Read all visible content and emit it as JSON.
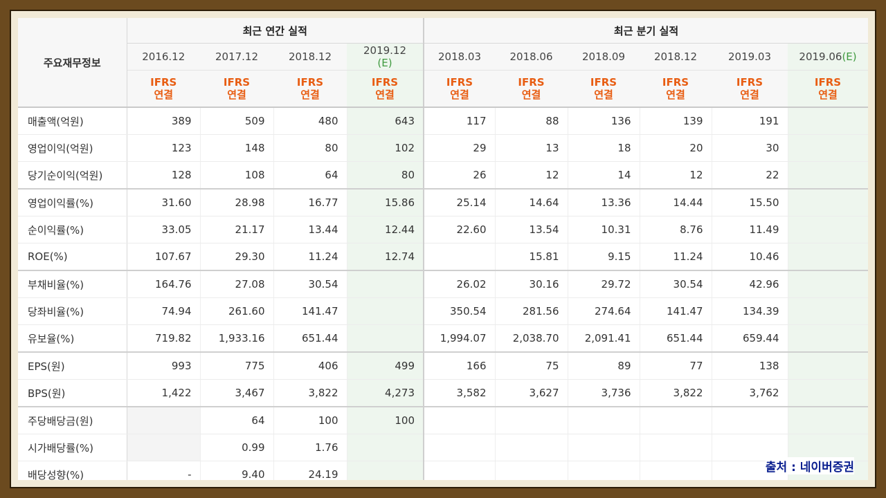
{
  "header": {
    "corner": "주요재무정보",
    "annual_group": "최근 연간 실적",
    "quarter_group": "최근 분기 실적",
    "periods": [
      "2016.12",
      "2017.12",
      "2018.12",
      "2019.12",
      "2018.03",
      "2018.06",
      "2018.09",
      "2018.12",
      "2019.03",
      "2019.06"
    ],
    "estimate_mark": "(E)",
    "ifrs_line1": "IFRS",
    "ifrs_line2": "연결"
  },
  "rows": [
    {
      "label": "매출액(억원)",
      "values": [
        "389",
        "509",
        "480",
        "643",
        "117",
        "88",
        "136",
        "139",
        "191",
        ""
      ]
    },
    {
      "label": "영업이익(억원)",
      "values": [
        "123",
        "148",
        "80",
        "102",
        "29",
        "13",
        "18",
        "20",
        "30",
        ""
      ]
    },
    {
      "label": "당기순이익(억원)",
      "values": [
        "128",
        "108",
        "64",
        "80",
        "26",
        "12",
        "14",
        "12",
        "22",
        ""
      ]
    },
    {
      "label": "영업이익률(%)",
      "values": [
        "31.60",
        "28.98",
        "16.77",
        "15.86",
        "25.14",
        "14.64",
        "13.36",
        "14.44",
        "15.50",
        ""
      ]
    },
    {
      "label": "순이익률(%)",
      "values": [
        "33.05",
        "21.17",
        "13.44",
        "12.44",
        "22.60",
        "13.54",
        "10.31",
        "8.76",
        "11.49",
        ""
      ]
    },
    {
      "label": "ROE(%)",
      "values": [
        "107.67",
        "29.30",
        "11.24",
        "12.74",
        "",
        "15.81",
        "9.15",
        "11.24",
        "10.46",
        ""
      ]
    },
    {
      "label": "부채비율(%)",
      "values": [
        "164.76",
        "27.08",
        "30.54",
        "",
        "26.02",
        "30.16",
        "29.72",
        "30.54",
        "42.96",
        ""
      ]
    },
    {
      "label": "당좌비율(%)",
      "values": [
        "74.94",
        "261.60",
        "141.47",
        "",
        "350.54",
        "281.56",
        "274.64",
        "141.47",
        "134.39",
        ""
      ]
    },
    {
      "label": "유보율(%)",
      "values": [
        "719.82",
        "1,933.16",
        "651.44",
        "",
        "1,994.07",
        "2,038.70",
        "2,091.41",
        "651.44",
        "659.44",
        ""
      ]
    },
    {
      "label": "EPS(원)",
      "values": [
        "993",
        "775",
        "406",
        "499",
        "166",
        "75",
        "89",
        "77",
        "138",
        ""
      ]
    },
    {
      "label": "BPS(원)",
      "values": [
        "1,422",
        "3,467",
        "3,822",
        "4,273",
        "3,582",
        "3,627",
        "3,736",
        "3,822",
        "3,762",
        ""
      ]
    },
    {
      "label": "주당배당금(원)",
      "values": [
        "",
        "64",
        "100",
        "100",
        "",
        "",
        "",
        "",
        "",
        ""
      ]
    },
    {
      "label": "시가배당률(%)",
      "values": [
        "",
        "0.99",
        "1.76",
        "",
        "",
        "",
        "",
        "",
        "",
        ""
      ]
    },
    {
      "label": "배당성향(%)",
      "values": [
        "-",
        "9.40",
        "24.19",
        "",
        "",
        "",
        "",
        "",
        "",
        ""
      ]
    }
  ],
  "source": "출처 : 네이버증권"
}
